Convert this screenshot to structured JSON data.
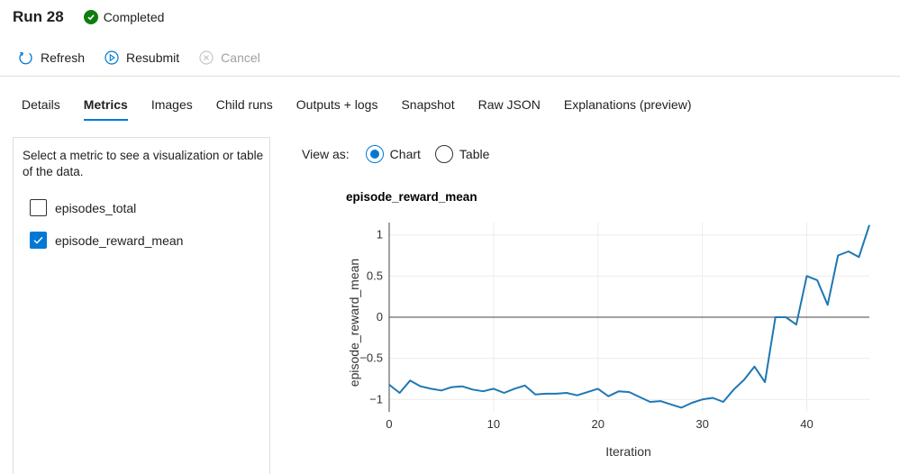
{
  "header": {
    "run_title": "Run 28",
    "status_text": "Completed",
    "status_color": "#107c10",
    "status_icon": "check-circle-icon"
  },
  "toolbar": {
    "refresh_label": "Refresh",
    "resubmit_label": "Resubmit",
    "cancel_label": "Cancel"
  },
  "tabs": [
    {
      "label": "Details",
      "active": false
    },
    {
      "label": "Metrics",
      "active": true
    },
    {
      "label": "Images",
      "active": false
    },
    {
      "label": "Child runs",
      "active": false
    },
    {
      "label": "Outputs + logs",
      "active": false
    },
    {
      "label": "Snapshot",
      "active": false
    },
    {
      "label": "Raw JSON",
      "active": false
    },
    {
      "label": "Explanations (preview)",
      "active": false
    }
  ],
  "metrics_panel": {
    "hint": "Select a metric to see a visualization or table of the data.",
    "items": [
      {
        "label": "episodes_total",
        "checked": false
      },
      {
        "label": "episode_reward_mean",
        "checked": true
      }
    ]
  },
  "view_as": {
    "label": "View as:",
    "options": [
      {
        "label": "Chart",
        "selected": true
      },
      {
        "label": "Table",
        "selected": false
      }
    ]
  },
  "accent_color": "#0078d4",
  "chart_data": {
    "type": "line",
    "title": "episode_reward_mean",
    "xlabel": "Iteration",
    "ylabel": "episode_reward_mean",
    "xlim": [
      0,
      46
    ],
    "ylim": [
      -1.15,
      1.15
    ],
    "xticks": [
      0,
      10,
      20,
      30,
      40
    ],
    "yticks": [
      -1,
      -0.5,
      0,
      0.5,
      1
    ],
    "grid": true,
    "zero_line": true,
    "line_color": "#1f77b4",
    "series": [
      {
        "x": [
          0,
          1,
          2,
          3,
          4,
          5,
          6,
          7,
          8,
          9,
          10,
          11,
          12,
          13,
          14,
          15,
          16,
          17,
          18,
          19,
          20,
          21,
          22,
          23,
          24,
          25,
          26,
          27,
          28,
          29,
          30,
          31,
          32,
          33,
          34,
          35,
          36,
          37,
          38,
          39,
          40,
          41,
          42,
          43,
          44,
          45,
          46
        ],
        "values": [
          -0.82,
          -0.92,
          -0.77,
          -0.84,
          -0.87,
          -0.89,
          -0.85,
          -0.84,
          -0.88,
          -0.9,
          -0.87,
          -0.92,
          -0.87,
          -0.83,
          -0.94,
          -0.93,
          -0.93,
          -0.92,
          -0.95,
          -0.91,
          -0.87,
          -0.96,
          -0.9,
          -0.91,
          -0.97,
          -1.03,
          -1.02,
          -1.06,
          -1.1,
          -1.04,
          -1.0,
          -0.98,
          -1.03,
          -0.88,
          -0.76,
          -0.6,
          -0.79,
          0.0,
          0.0,
          -0.09,
          0.5,
          0.45,
          0.15,
          0.75,
          0.8,
          0.73,
          1.12
        ]
      }
    ]
  }
}
